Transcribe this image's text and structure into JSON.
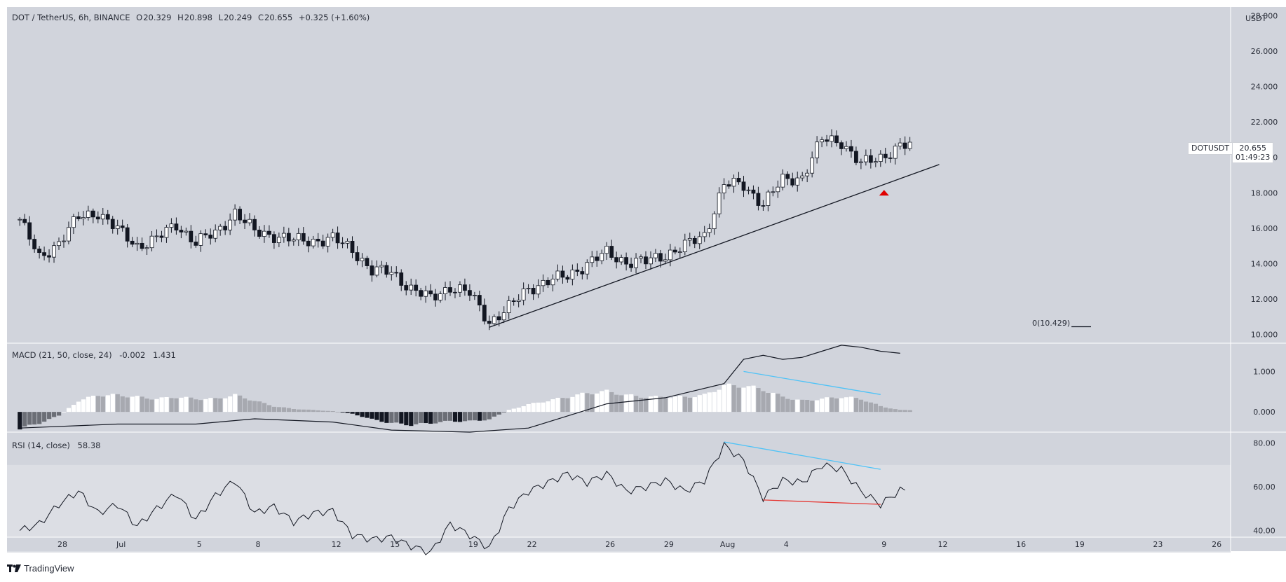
{
  "header": {
    "symbol": "DOT / TetherUS, 6h, BINANCE",
    "o_label": "O",
    "o_value": "20.329",
    "h_label": "H",
    "h_value": "20.898",
    "l_label": "L",
    "l_value": "20.249",
    "c_label": "C",
    "c_value": "20.655",
    "change": "+0.325 (+1.60%)"
  },
  "currency": "USDT",
  "price_tag": {
    "ticker": "DOTUSDT",
    "price": "20.655",
    "countdown": "01:49:23"
  },
  "fib_label": "0(10.429)",
  "macd_header": {
    "name": "MACD (21, 50, close, 24)",
    "v1": "-0.002",
    "v2": "1.431"
  },
  "rsi_header": {
    "name": "RSI (14, close)",
    "value": "58.38"
  },
  "brand": "TradingView",
  "colors": {
    "background": "#d1d4dc",
    "rsi_band": "#dcdee4",
    "candle_up": "#ffffff",
    "candle_down": "#131722",
    "divergence_blue": "#4fc3f7",
    "divergence_red": "#e53935",
    "arrow_red": "#e00000"
  },
  "chart_data": [
    {
      "type": "candlestick",
      "title": "DOT / TetherUS, 6h, BINANCE",
      "x_tick_labels": [
        "28",
        "Jul",
        "5",
        "8",
        "12",
        "15",
        "19",
        "22",
        "26",
        "29",
        "Aug",
        "4",
        "9",
        "12",
        "16",
        "19",
        "23",
        "26"
      ],
      "y_tick_labels": [
        "10.000",
        "12.000",
        "14.000",
        "16.000",
        "18.000",
        "20.000",
        "22.000",
        "24.000",
        "26.000",
        "28.000"
      ],
      "ylim": [
        9.5,
        28.5
      ],
      "anchors": [
        [
          "Jun 26",
          16.5
        ],
        [
          "Jun 27",
          14.3
        ],
        [
          "Jun 28",
          15.2
        ],
        [
          "Jun 29",
          16.6
        ],
        [
          "Jun 30",
          16.9
        ],
        [
          "Jul 1",
          15.9
        ],
        [
          "Jul 2",
          15.0
        ],
        [
          "Jul 3",
          15.4
        ],
        [
          "Jul 4",
          16.2
        ],
        [
          "Jul 5",
          15.2
        ],
        [
          "Jul 6",
          15.7
        ],
        [
          "Jul 7",
          16.9
        ],
        [
          "Jul 8",
          15.8
        ],
        [
          "Jul 9",
          15.6
        ],
        [
          "Jul 10",
          15.3
        ],
        [
          "Jul 11",
          15.3
        ],
        [
          "Jul 12",
          15.4
        ],
        [
          "Jul 13",
          14.8
        ],
        [
          "Jul 14",
          13.6
        ],
        [
          "Jul 15",
          13.5
        ],
        [
          "Jul 16",
          12.6
        ],
        [
          "Jul 17",
          12.0
        ],
        [
          "Jul 18",
          12.7
        ],
        [
          "Jul 19",
          12.3
        ],
        [
          "Jul 20",
          10.7
        ],
        [
          "Jul 21",
          11.5
        ],
        [
          "Jul 22",
          12.6
        ],
        [
          "Jul 23",
          13.0
        ],
        [
          "Jul 24",
          13.3
        ],
        [
          "Jul 25",
          14.0
        ],
        [
          "Jul 26",
          14.6
        ],
        [
          "Jul 27",
          14.1
        ],
        [
          "Jul 28",
          14.1
        ],
        [
          "Jul 29",
          14.5
        ],
        [
          "Jul 30",
          15.0
        ],
        [
          "Jul 31",
          15.6
        ],
        [
          "Aug 1",
          18.5
        ],
        [
          "Aug 2",
          18.4
        ],
        [
          "Aug 3",
          17.4
        ],
        [
          "Aug 4",
          18.7
        ],
        [
          "Aug 5",
          18.9
        ],
        [
          "Aug 6",
          21.0
        ],
        [
          "Aug 7",
          20.9
        ],
        [
          "Aug 8",
          19.6
        ],
        [
          "Aug 9",
          20.0
        ],
        [
          "Aug 10",
          20.65
        ]
      ],
      "trendline": {
        "x": [
          "Jul 20",
          "Aug 12"
        ],
        "y": [
          10.4,
          19.6
        ]
      },
      "fib_level": {
        "label": "0(10.429)",
        "y": 10.429
      },
      "arrow": {
        "x": "Aug 9",
        "y": 18.0,
        "direction": "up"
      }
    },
    {
      "type": "macd",
      "title": "MACD (21, 50, close, 24)",
      "y_tick_labels": [
        "0.000",
        "1.000"
      ],
      "ylim": [
        -0.5,
        1.7
      ],
      "macd_line": [
        [
          "Jun 26",
          -0.4
        ],
        [
          "Jul 1",
          -0.3
        ],
        [
          "Jul 5",
          -0.3
        ],
        [
          "Jul 8",
          -0.17
        ],
        [
          "Jul 12",
          -0.25
        ],
        [
          "Jul 15",
          -0.45
        ],
        [
          "Jul 19",
          -0.5
        ],
        [
          "Jul 22",
          -0.4
        ],
        [
          "Jul 26",
          0.2
        ],
        [
          "Jul 29",
          0.35
        ],
        [
          "Aug 1",
          0.7
        ],
        [
          "Aug 2",
          1.3
        ],
        [
          "Aug 3",
          1.4
        ],
        [
          "Aug 4",
          1.3
        ],
        [
          "Aug 5",
          1.35
        ],
        [
          "Aug 6",
          1.5
        ],
        [
          "Aug 7",
          1.65
        ],
        [
          "Aug 8",
          1.6
        ],
        [
          "Aug 9",
          1.5
        ],
        [
          "Aug 10",
          1.45
        ]
      ],
      "histogram": [
        [
          "Jun 26",
          -0.45
        ],
        [
          "Jun 27",
          -0.3
        ],
        [
          "Jun 28",
          -0.1
        ],
        [
          "Jun 29",
          0.3
        ],
        [
          "Jun 30",
          0.45
        ],
        [
          "Jul 1",
          0.45
        ],
        [
          "Jul 2",
          0.4
        ],
        [
          "Jul 3",
          0.35
        ],
        [
          "Jul 4",
          0.4
        ],
        [
          "Jul 5",
          0.35
        ],
        [
          "Jul 6",
          0.35
        ],
        [
          "Jul 7",
          0.45
        ],
        [
          "Jul 8",
          0.3
        ],
        [
          "Jul 9",
          0.15
        ],
        [
          "Jul 10",
          0.08
        ],
        [
          "Jul 11",
          0.05
        ],
        [
          "Jul 12",
          0.02
        ],
        [
          "Jul 13",
          -0.05
        ],
        [
          "Jul 14",
          -0.2
        ],
        [
          "Jul 15",
          -0.3
        ],
        [
          "Jul 16",
          -0.35
        ],
        [
          "Jul 17",
          -0.3
        ],
        [
          "Jul 18",
          -0.25
        ],
        [
          "Jul 19",
          -0.25
        ],
        [
          "Jul 20",
          -0.2
        ],
        [
          "Jul 21",
          0.05
        ],
        [
          "Jul 22",
          0.2
        ],
        [
          "Jul 23",
          0.3
        ],
        [
          "Jul 24",
          0.4
        ],
        [
          "Jul 25",
          0.5
        ],
        [
          "Jul 26",
          0.55
        ],
        [
          "Jul 27",
          0.45
        ],
        [
          "Jul 28",
          0.4
        ],
        [
          "Jul 29",
          0.4
        ],
        [
          "Jul 30",
          0.4
        ],
        [
          "Jul 31",
          0.45
        ],
        [
          "Aug 1",
          0.7
        ],
        [
          "Aug 2",
          0.7
        ],
        [
          "Aug 3",
          0.6
        ],
        [
          "Aug 4",
          0.4
        ],
        [
          "Aug 5",
          0.3
        ],
        [
          "Aug 6",
          0.35
        ],
        [
          "Aug 7",
          0.4
        ],
        [
          "Aug 8",
          0.35
        ],
        [
          "Aug 9",
          0.15
        ],
        [
          "Aug 10",
          0.05
        ]
      ],
      "divergence": {
        "x": [
          "Aug 2",
          "Aug 9"
        ],
        "y": [
          1.0,
          0.43
        ]
      }
    },
    {
      "type": "rsi",
      "title": "RSI (14, close)",
      "y_tick_labels": [
        "40.00",
        "60.00",
        "80.00"
      ],
      "ylim": [
        37,
        85
      ],
      "band": [
        30,
        70
      ],
      "values": [
        [
          "Jun 26",
          40
        ],
        [
          "Jun 27",
          43
        ],
        [
          "Jun 28",
          52
        ],
        [
          "Jun 29",
          58
        ],
        [
          "Jun 30",
          48
        ],
        [
          "Jul 1",
          52
        ],
        [
          "Jul 2",
          42
        ],
        [
          "Jul 3",
          50
        ],
        [
          "Jul 4",
          57
        ],
        [
          "Jul 5",
          45
        ],
        [
          "Jul 6",
          56
        ],
        [
          "Jul 7",
          63
        ],
        [
          "Jul 8",
          48
        ],
        [
          "Jul 9",
          51
        ],
        [
          "Jul 10",
          44
        ],
        [
          "Jul 11",
          48
        ],
        [
          "Jul 12",
          49
        ],
        [
          "Jul 13",
          38
        ],
        [
          "Jul 14",
          36
        ],
        [
          "Jul 15",
          37
        ],
        [
          "Jul 16",
          33
        ],
        [
          "Jul 17",
          30
        ],
        [
          "Jul 18",
          43
        ],
        [
          "Jul 19",
          38
        ],
        [
          "Jul 20",
          32
        ],
        [
          "Jul 21",
          50
        ],
        [
          "Jul 22",
          58
        ],
        [
          "Jul 23",
          62
        ],
        [
          "Jul 24",
          66
        ],
        [
          "Jul 25",
          62
        ],
        [
          "Jul 26",
          66
        ],
        [
          "Jul 27",
          58
        ],
        [
          "Jul 28",
          60
        ],
        [
          "Jul 29",
          63
        ],
        [
          "Jul 30",
          58
        ],
        [
          "Jul 31",
          63
        ],
        [
          "Aug 1",
          79
        ],
        [
          "Aug 2",
          72
        ],
        [
          "Aug 3",
          55
        ],
        [
          "Aug 4",
          63
        ],
        [
          "Aug 5",
          62
        ],
        [
          "Aug 6",
          70
        ],
        [
          "Aug 7",
          68
        ],
        [
          "Aug 8",
          58
        ],
        [
          "Aug 9",
          52
        ],
        [
          "Aug 10",
          58.38
        ]
      ],
      "divergence_blue": {
        "x": [
          "Aug 1",
          "Aug 9"
        ],
        "y": [
          80.5,
          68
        ]
      },
      "divergence_red": {
        "x": [
          "Aug 3",
          "Aug 9"
        ],
        "y": [
          54,
          52
        ]
      }
    }
  ]
}
